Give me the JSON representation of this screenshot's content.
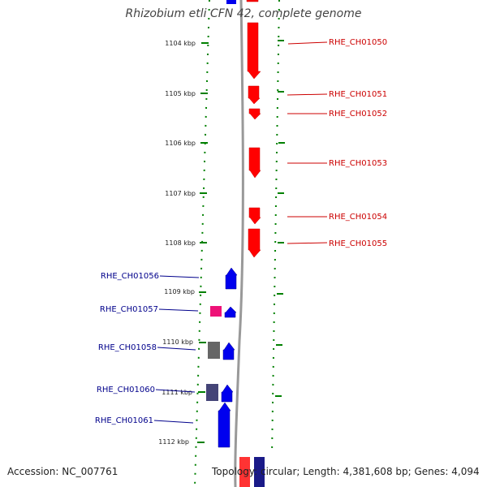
{
  "title": "Rhizobium etli CFN 42, complete genome",
  "footer": {
    "accession": "Accession: NC_007761",
    "stats": "Topology: circular; Length: 4,381,608 bp; Genes: 4,094"
  },
  "colors": {
    "forward": "#ff0000",
    "reverse": "#0000ee",
    "forward_label": "#cc0000",
    "reverse_label": "#00008b",
    "ticks": "#008000",
    "backbone": "#999999"
  },
  "scale": {
    "unit": "kbp",
    "ticks": [
      "1104 kbp",
      "1105 kbp",
      "1106 kbp",
      "1107 kbp",
      "1108 kbp",
      "1109 kbp",
      "1110 kbp",
      "1111 kbp",
      "1112 kbp"
    ]
  },
  "genes_forward": [
    {
      "label": "RHE_CH01050"
    },
    {
      "label": "RHE_CH01051"
    },
    {
      "label": "RHE_CH01052"
    },
    {
      "label": "RHE_CH01053"
    },
    {
      "label": "RHE_CH01054"
    },
    {
      "label": "RHE_CH01055"
    }
  ],
  "genes_reverse": [
    {
      "label": "RHE_CH01056"
    },
    {
      "label": "RHE_CH01057"
    },
    {
      "label": "RHE_CH01058"
    },
    {
      "label": "RHE_CH01060"
    },
    {
      "label": "RHE_CH01061"
    }
  ]
}
